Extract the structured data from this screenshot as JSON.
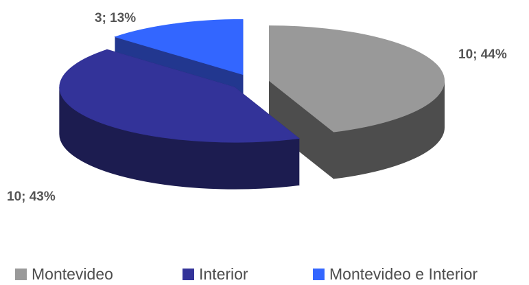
{
  "chart_data": {
    "type": "pie3d",
    "categories": [
      "Montevideo",
      "Interior",
      "Montevideo e Interior"
    ],
    "values": [
      44,
      43,
      13
    ],
    "value_labels": [
      "10; 44%",
      "10; 43%",
      "3; 13%"
    ],
    "colors": [
      "#999999",
      "#333399",
      "#3366ff"
    ],
    "side_colors": [
      "#4d4d4d",
      "#1c1c50",
      "#22378f"
    ],
    "legend": "bottom"
  }
}
